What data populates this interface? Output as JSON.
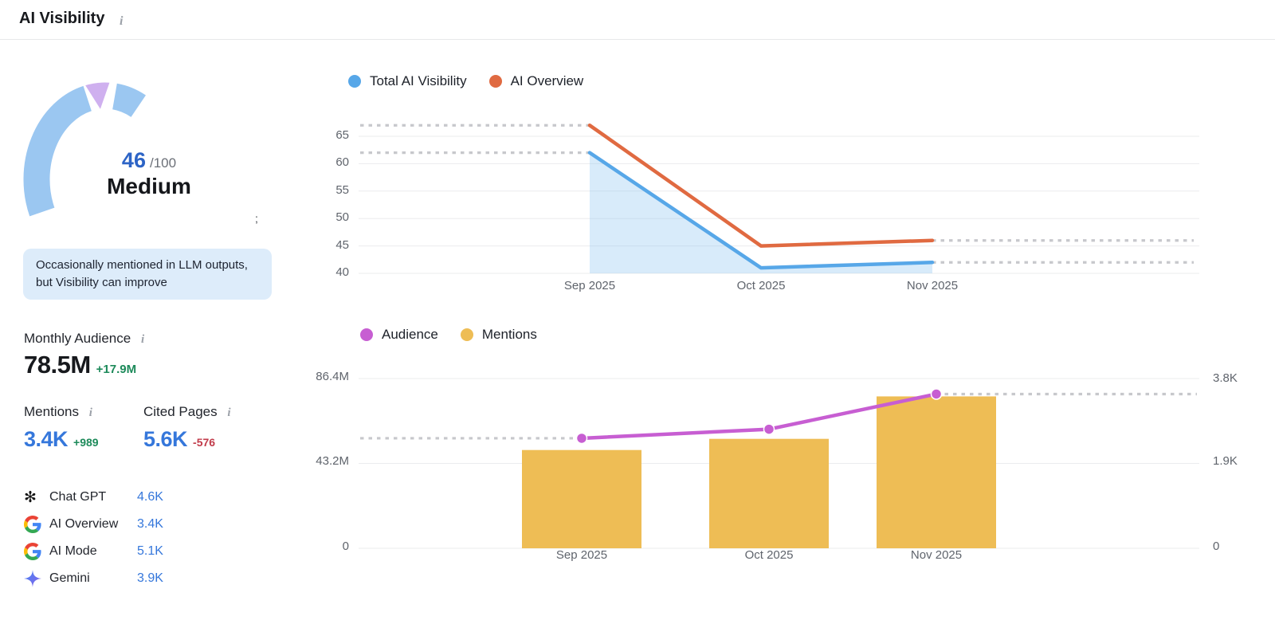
{
  "header": {
    "title": "AI Visibility",
    "info_icon": "i"
  },
  "gauge": {
    "score": "46",
    "score_max": "/100",
    "label": "Medium",
    "stray": ";",
    "note": "Occasionally mentioned in LLM outputs, but Visibility can improve",
    "colors": {
      "arc_blue": "#9bc7f1",
      "segment_purple": "#cfb0ef",
      "score_blue": "#2d64c6"
    }
  },
  "stats": {
    "monthly_audience": {
      "label": "Monthly Audience",
      "value": "78.5M",
      "change": "+17.9M"
    },
    "mentions": {
      "label": "Mentions",
      "value": "3.4K",
      "change": "+989"
    },
    "cited_pages": {
      "label": "Cited Pages",
      "value": "5.6K",
      "change": "-576"
    }
  },
  "platforms": [
    {
      "icon": "chatgpt-icon",
      "label": "Chat GPT",
      "value": "4.6K"
    },
    {
      "icon": "google-icon",
      "label": "AI Overview",
      "value": "3.4K"
    },
    {
      "icon": "google-icon",
      "label": "AI Mode",
      "value": "5.1K"
    },
    {
      "icon": "gemini-icon",
      "label": "Gemini",
      "value": "3.9K"
    }
  ],
  "colors": {
    "stat_blue": "#3577db",
    "green": "#1d8a5a",
    "red": "#c13b4a",
    "grid": "#ebecee",
    "dotted": "#c7c8cc",
    "axis_text": "#5f646c"
  },
  "chart_data": [
    {
      "type": "line",
      "title": "AI Visibility trend",
      "x": [
        "Sep 2025",
        "Oct 2025",
        "Nov 2025"
      ],
      "series": [
        {
          "name": "Total AI Visibility",
          "color": "#57a7e8",
          "values": [
            62,
            41,
            42
          ],
          "area": true
        },
        {
          "name": "AI Overview",
          "color": "#e06a41",
          "values": [
            67,
            45,
            46
          ],
          "area": false
        }
      ],
      "y_ticks": [
        65,
        60,
        55,
        50,
        45,
        40
      ],
      "ylim": [
        40,
        67.5
      ],
      "grid": true,
      "legend_position": "top",
      "dotted_leaders": true
    },
    {
      "type": "bar+line",
      "title": "Audience and Mentions trend",
      "x": [
        "Sep 2025",
        "Oct 2025",
        "Nov 2025"
      ],
      "series": [
        {
          "name": "Audience",
          "render": "line",
          "axis": "left",
          "color": "#c75ed2",
          "values": [
            56,
            60.6,
            78.5
          ],
          "unit": "M"
        },
        {
          "name": "Mentions",
          "render": "bar",
          "axis": "right",
          "color": "#eebd55",
          "values": [
            2.2,
            2.45,
            3.4
          ],
          "unit": "K"
        }
      ],
      "left_axis": {
        "ticks": [
          "86.4M",
          "43.2M",
          "0"
        ],
        "values": [
          86.4,
          43.2,
          0
        ],
        "max": 86.4
      },
      "right_axis": {
        "ticks": [
          "3.8K",
          "1.9K",
          "0"
        ],
        "values": [
          3.8,
          1.9,
          0
        ],
        "max": 3.8
      },
      "grid": true,
      "legend_position": "top",
      "dotted_leaders": true
    }
  ]
}
